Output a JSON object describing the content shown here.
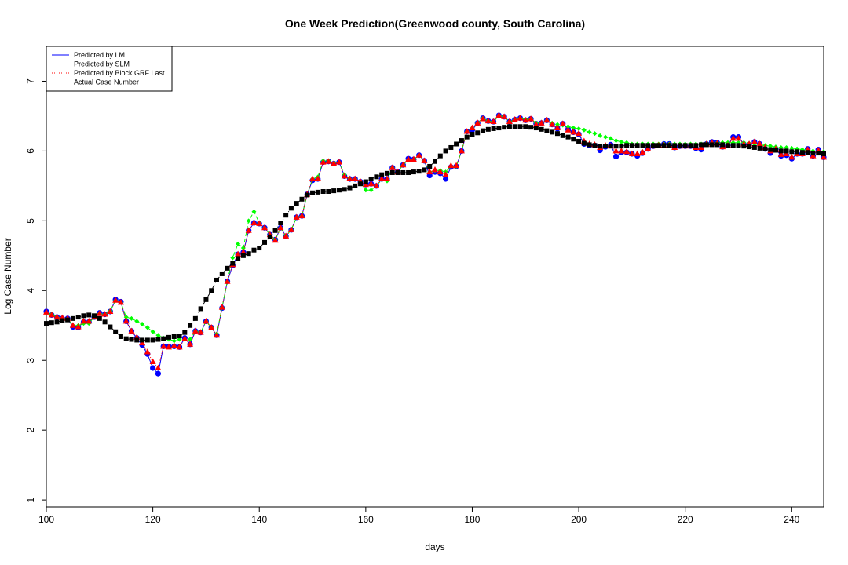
{
  "chart_data": {
    "type": "line",
    "title": "One Week Prediction(Greenwood county, South Carolina)",
    "xlabel": "days",
    "ylabel": "Log Case Number",
    "xlim": [
      100,
      246
    ],
    "ylim": [
      0.9,
      7.5
    ],
    "x_ticks": [
      100,
      120,
      140,
      160,
      180,
      200,
      220,
      240
    ],
    "y_ticks": [
      1,
      2,
      3,
      4,
      5,
      6,
      7
    ],
    "grid": false,
    "legend_position": "top-left",
    "x": [
      100,
      101,
      102,
      103,
      104,
      105,
      106,
      107,
      108,
      109,
      110,
      111,
      112,
      113,
      114,
      115,
      116,
      117,
      118,
      119,
      120,
      121,
      122,
      123,
      124,
      125,
      126,
      127,
      128,
      129,
      130,
      131,
      132,
      133,
      134,
      135,
      136,
      137,
      138,
      139,
      140,
      141,
      142,
      143,
      144,
      145,
      146,
      147,
      148,
      149,
      150,
      151,
      152,
      153,
      154,
      155,
      156,
      157,
      158,
      159,
      160,
      161,
      162,
      163,
      164,
      165,
      166,
      167,
      168,
      169,
      170,
      171,
      172,
      173,
      174,
      175,
      176,
      177,
      178,
      179,
      180,
      181,
      182,
      183,
      184,
      185,
      186,
      187,
      188,
      189,
      190,
      191,
      192,
      193,
      194,
      195,
      196,
      197,
      198,
      199,
      200,
      201,
      202,
      203,
      204,
      205,
      206,
      207,
      208,
      209,
      210,
      211,
      212,
      213,
      214,
      215,
      216,
      217,
      218,
      219,
      220,
      221,
      222,
      223,
      224,
      225,
      226,
      227,
      228,
      229,
      230,
      231,
      232,
      233,
      234,
      235,
      236,
      237,
      238,
      239,
      240,
      241,
      242,
      243,
      244,
      245,
      246
    ],
    "series": [
      {
        "name": "Predicted by LM",
        "color": "#0000ff",
        "line_style": "solid",
        "marker": "circle",
        "values": [
          3.7,
          3.65,
          3.62,
          3.6,
          3.6,
          3.48,
          3.47,
          3.55,
          3.55,
          3.62,
          3.68,
          3.66,
          3.7,
          3.87,
          3.84,
          3.56,
          3.42,
          3.32,
          3.22,
          3.09,
          2.89,
          2.81,
          3.2,
          3.2,
          3.2,
          3.19,
          3.32,
          3.23,
          3.42,
          3.4,
          3.56,
          3.47,
          3.36,
          3.75,
          4.13,
          4.36,
          4.52,
          4.55,
          4.86,
          4.97,
          4.96,
          4.9,
          4.8,
          4.73,
          4.9,
          4.78,
          4.87,
          5.05,
          5.07,
          5.38,
          5.58,
          5.6,
          5.84,
          5.85,
          5.82,
          5.84,
          5.64,
          5.6,
          5.6,
          5.56,
          5.52,
          5.53,
          5.5,
          5.6,
          5.6,
          5.76,
          5.7,
          5.8,
          5.89,
          5.88,
          5.94,
          5.86,
          5.65,
          5.7,
          5.68,
          5.6,
          5.77,
          5.78,
          6.0,
          6.28,
          6.3,
          6.4,
          6.47,
          6.43,
          6.42,
          6.51,
          6.49,
          6.42,
          6.45,
          6.47,
          6.44,
          6.46,
          6.39,
          6.4,
          6.44,
          6.38,
          6.32,
          6.39,
          6.31,
          6.27,
          6.24,
          6.1,
          6.08,
          6.08,
          6.01,
          6.06,
          6.09,
          5.92,
          5.98,
          5.98,
          5.96,
          5.93,
          5.97,
          6.03,
          6.07,
          6.08,
          6.1,
          6.1,
          6.05,
          6.07,
          6.07,
          6.07,
          6.04,
          6.02,
          6.1,
          6.13,
          6.12,
          6.06,
          6.08,
          6.2,
          6.2,
          6.1,
          6.09,
          6.13,
          6.1,
          6.03,
          5.97,
          6.03,
          5.93,
          5.94,
          5.89,
          5.96,
          5.96,
          6.03,
          5.93,
          6.02,
          5.91
        ]
      },
      {
        "name": "Predicted by SLM",
        "color": "#00ff00",
        "line_style": "dashed",
        "marker": "diamond",
        "values": [
          3.68,
          3.66,
          3.62,
          3.6,
          3.6,
          3.5,
          3.5,
          3.53,
          3.53,
          3.62,
          3.67,
          3.66,
          3.71,
          3.86,
          3.83,
          3.62,
          3.6,
          3.56,
          3.52,
          3.47,
          3.41,
          3.36,
          3.32,
          3.3,
          3.28,
          3.3,
          3.3,
          3.3,
          3.42,
          3.4,
          3.56,
          3.47,
          3.38,
          3.76,
          4.13,
          4.47,
          4.67,
          4.61,
          5.0,
          5.13,
          4.97,
          4.9,
          4.8,
          4.73,
          4.9,
          4.78,
          4.87,
          5.05,
          5.07,
          5.38,
          5.6,
          5.63,
          5.86,
          5.86,
          5.83,
          5.84,
          5.66,
          5.6,
          5.6,
          5.56,
          5.44,
          5.44,
          5.5,
          5.59,
          5.57,
          5.76,
          5.7,
          5.8,
          5.88,
          5.88,
          5.94,
          5.86,
          5.7,
          5.72,
          5.72,
          5.7,
          5.78,
          5.78,
          6.0,
          6.28,
          6.33,
          6.4,
          6.47,
          6.43,
          6.42,
          6.51,
          6.49,
          6.42,
          6.45,
          6.47,
          6.45,
          6.46,
          6.4,
          6.4,
          6.44,
          6.4,
          6.38,
          6.37,
          6.35,
          6.33,
          6.32,
          6.3,
          6.27,
          6.25,
          6.22,
          6.2,
          6.18,
          6.15,
          6.13,
          6.12,
          6.1,
          6.1,
          6.1,
          6.1,
          6.1,
          6.1,
          6.1,
          6.1,
          6.1,
          6.1,
          6.1,
          6.1,
          6.1,
          6.1,
          6.11,
          6.12,
          6.12,
          6.12,
          6.12,
          6.12,
          6.12,
          6.12,
          6.11,
          6.1,
          6.09,
          6.08,
          6.07,
          6.06,
          6.05,
          6.05,
          6.04,
          6.03,
          6.02,
          6.01,
          6.0,
          6.0,
          5.99
        ]
      },
      {
        "name": "Predicted by Block GRF Last",
        "color": "#ff0000",
        "line_style": "dotted",
        "marker": "triangle",
        "values": [
          3.69,
          3.65,
          3.62,
          3.61,
          3.6,
          3.5,
          3.48,
          3.56,
          3.56,
          3.62,
          3.67,
          3.66,
          3.7,
          3.86,
          3.83,
          3.56,
          3.42,
          3.33,
          3.25,
          3.12,
          2.98,
          2.89,
          3.2,
          3.19,
          3.21,
          3.19,
          3.31,
          3.23,
          3.42,
          3.4,
          3.56,
          3.47,
          3.36,
          3.76,
          4.13,
          4.37,
          4.52,
          4.55,
          4.86,
          4.97,
          4.96,
          4.9,
          4.8,
          4.72,
          4.9,
          4.78,
          4.87,
          5.05,
          5.07,
          5.38,
          5.6,
          5.6,
          5.84,
          5.85,
          5.82,
          5.84,
          5.64,
          5.6,
          5.6,
          5.56,
          5.52,
          5.53,
          5.5,
          5.6,
          5.6,
          5.76,
          5.7,
          5.8,
          5.88,
          5.88,
          5.94,
          5.86,
          5.7,
          5.73,
          5.7,
          5.66,
          5.79,
          5.79,
          6.0,
          6.28,
          6.33,
          6.4,
          6.46,
          6.43,
          6.42,
          6.51,
          6.49,
          6.42,
          6.45,
          6.47,
          6.44,
          6.46,
          6.38,
          6.4,
          6.44,
          6.38,
          6.33,
          6.39,
          6.3,
          6.27,
          6.25,
          6.14,
          6.1,
          6.09,
          6.05,
          6.08,
          6.07,
          6.0,
          6.0,
          5.99,
          5.96,
          5.96,
          5.98,
          6.03,
          6.07,
          6.08,
          6.08,
          6.08,
          6.05,
          6.07,
          6.07,
          6.07,
          6.05,
          6.05,
          6.1,
          6.12,
          6.11,
          6.06,
          6.08,
          6.18,
          6.18,
          6.1,
          6.1,
          6.13,
          6.1,
          6.05,
          6.0,
          6.03,
          5.95,
          5.96,
          5.91,
          5.96,
          5.96,
          6.02,
          5.93,
          6.01,
          5.91
        ]
      },
      {
        "name": "Actual Case Number",
        "color": "#000000",
        "line_style": "dotdash",
        "marker": "square",
        "values": [
          3.53,
          3.54,
          3.55,
          3.57,
          3.58,
          3.6,
          3.62,
          3.64,
          3.65,
          3.64,
          3.6,
          3.55,
          3.48,
          3.41,
          3.34,
          3.31,
          3.3,
          3.29,
          3.29,
          3.29,
          3.29,
          3.3,
          3.31,
          3.33,
          3.34,
          3.35,
          3.4,
          3.5,
          3.6,
          3.74,
          3.87,
          4.0,
          4.15,
          4.24,
          4.32,
          4.39,
          4.46,
          4.5,
          4.53,
          4.58,
          4.61,
          4.69,
          4.77,
          4.86,
          4.97,
          5.08,
          5.18,
          5.25,
          5.31,
          5.37,
          5.4,
          5.41,
          5.42,
          5.42,
          5.43,
          5.44,
          5.45,
          5.47,
          5.5,
          5.53,
          5.56,
          5.6,
          5.63,
          5.66,
          5.68,
          5.69,
          5.69,
          5.69,
          5.69,
          5.7,
          5.71,
          5.73,
          5.78,
          5.85,
          5.93,
          6.0,
          6.05,
          6.1,
          6.15,
          6.2,
          6.24,
          6.26,
          6.29,
          6.31,
          6.32,
          6.33,
          6.34,
          6.35,
          6.35,
          6.35,
          6.35,
          6.34,
          6.33,
          6.31,
          6.29,
          6.27,
          6.25,
          6.22,
          6.2,
          6.17,
          6.14,
          6.11,
          6.09,
          6.08,
          6.07,
          6.07,
          6.07,
          6.07,
          6.07,
          6.08,
          6.08,
          6.08,
          6.08,
          6.08,
          6.08,
          6.08,
          6.08,
          6.08,
          6.08,
          6.08,
          6.08,
          6.08,
          6.08,
          6.09,
          6.09,
          6.09,
          6.09,
          6.09,
          6.08,
          6.08,
          6.08,
          6.07,
          6.06,
          6.05,
          6.04,
          6.03,
          6.02,
          6.01,
          6.0,
          6.0,
          5.99,
          5.99,
          5.98,
          5.98,
          5.97,
          5.97,
          5.96
        ]
      }
    ]
  }
}
